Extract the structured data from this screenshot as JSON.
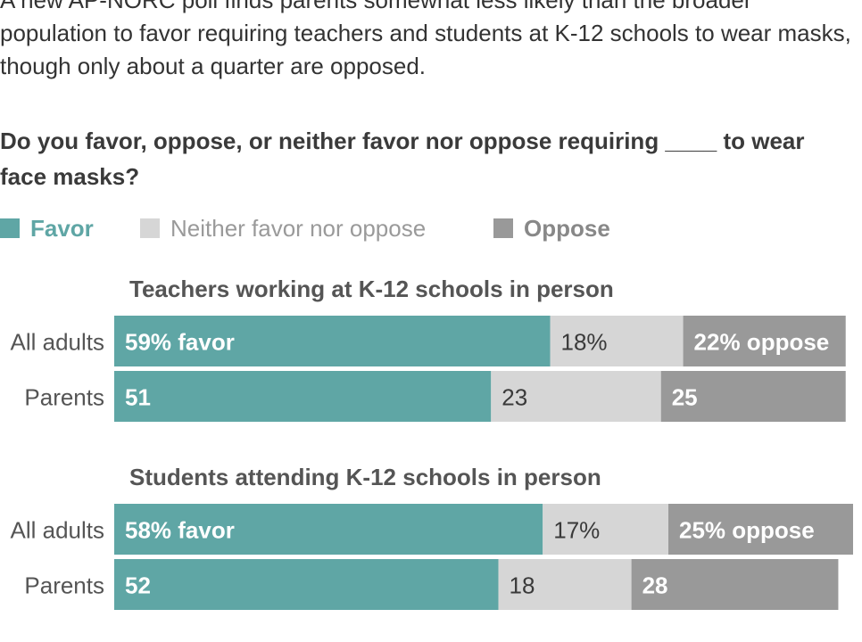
{
  "intro": "A new AP-NORC poll finds parents somewhat less likely than the broader population to favor requiring teachers and students at K-12 schools to wear masks, though only about a quarter are opposed.",
  "question": "Do you favor, oppose, or neither favor nor oppose requiring ____ to wear face masks?",
  "legend": [
    {
      "label": "Favor",
      "color": "#5fa6a5",
      "text_color": "#5fa6a5",
      "bold": true
    },
    {
      "label": "Neither favor nor oppose",
      "color": "#d6d6d6",
      "text_color": "#9a9a9a",
      "bold": false
    },
    {
      "label": "Oppose",
      "color": "#999999",
      "text_color": "#888888",
      "bold": true
    }
  ],
  "colors": {
    "favor": "#5fa6a5",
    "neither": "#d6d6d6",
    "oppose": "#999999",
    "row_label": "#555555",
    "group_title": "#555555"
  },
  "chart_data": {
    "type": "bar",
    "orientation": "horizontal",
    "stacked": true,
    "xlim": [
      0,
      100
    ],
    "unit": "%",
    "segments": [
      "Favor",
      "Neither favor nor oppose",
      "Oppose"
    ],
    "groups": [
      {
        "title": "Teachers working at K-12 schools in person",
        "rows": [
          {
            "label": "All adults",
            "values": [
              59,
              18,
              22
            ],
            "labels": [
              "59% favor",
              "18%",
              "22% oppose"
            ]
          },
          {
            "label": "Parents",
            "values": [
              51,
              23,
              25
            ],
            "labels": [
              "51",
              "23",
              "25"
            ]
          }
        ]
      },
      {
        "title": "Students attending K-12 schools in person",
        "rows": [
          {
            "label": "All adults",
            "values": [
              58,
              17,
              25
            ],
            "labels": [
              "58% favor",
              "17%",
              "25% oppose"
            ]
          },
          {
            "label": "Parents",
            "values": [
              52,
              18,
              28
            ],
            "labels": [
              "52",
              "18",
              "28"
            ]
          }
        ]
      }
    ]
  }
}
